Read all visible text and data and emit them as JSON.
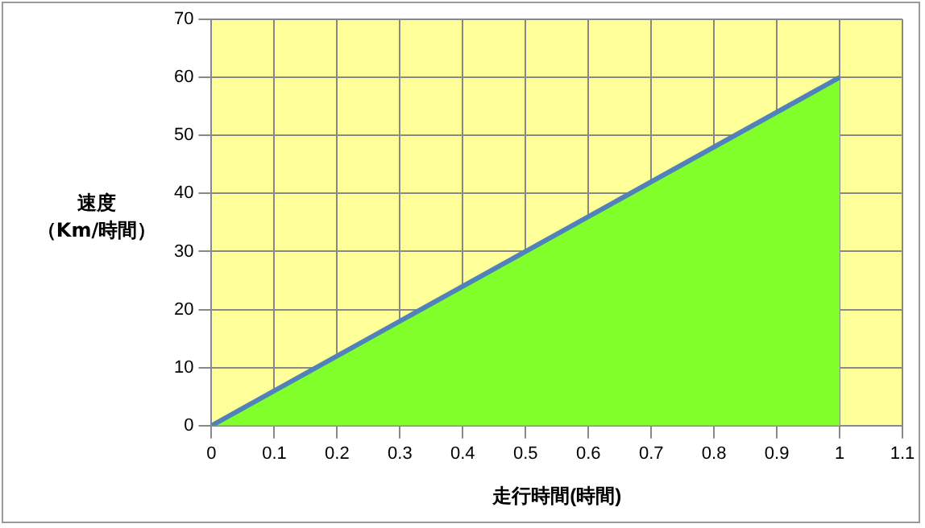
{
  "chart_data": {
    "type": "area",
    "xlabel": "走行時間(時間)",
    "ylabel": "速度（Km/時間）",
    "x": [
      0,
      1
    ],
    "series": [
      {
        "color": "#80ff2a",
        "values": [
          0,
          60
        ]
      }
    ],
    "xlim": [
      0,
      1.1
    ],
    "xticks": [
      0,
      0.1,
      0.2,
      0.3,
      0.4,
      0.5,
      0.6,
      0.7,
      0.8,
      0.9,
      1,
      1.1
    ],
    "ylim": [
      0,
      70
    ],
    "yticks": [
      0,
      10,
      20,
      30,
      40,
      50,
      60,
      70
    ],
    "grid": true,
    "legend": false,
    "marker": "none",
    "line_style": "solid"
  }
}
